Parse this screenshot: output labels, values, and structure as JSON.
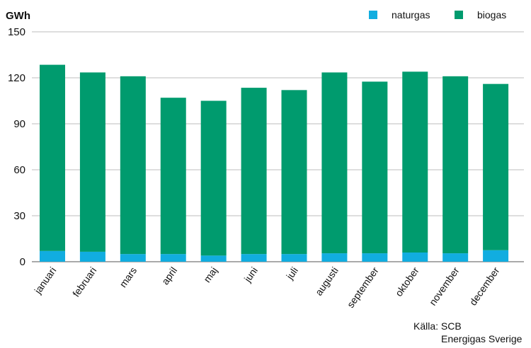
{
  "chart_data": {
    "type": "bar",
    "stacked": true,
    "ylabel": "GWh",
    "ylim": [
      0,
      150
    ],
    "yticks": [
      0,
      30,
      60,
      90,
      120,
      150
    ],
    "grid": true,
    "legend_position": "top-right",
    "categories": [
      "januari",
      "februari",
      "mars",
      "april",
      "maj",
      "juni",
      "juli",
      "augusti",
      "september",
      "oktober",
      "november",
      "december"
    ],
    "series": [
      {
        "name": "naturgas",
        "color": "#11ade0",
        "values": [
          7,
          6.5,
          5,
          5,
          4,
          5,
          5,
          5.5,
          5.5,
          6,
          5.5,
          7.5
        ]
      },
      {
        "name": "biogas",
        "color": "#009b6e",
        "values": [
          121.5,
          117,
          116,
          102,
          101,
          108.5,
          107,
          118,
          112,
          118,
          115.5,
          108.5
        ]
      }
    ]
  },
  "source": {
    "line1": "Källa: SCB",
    "line2": "Energigas Sverige"
  }
}
